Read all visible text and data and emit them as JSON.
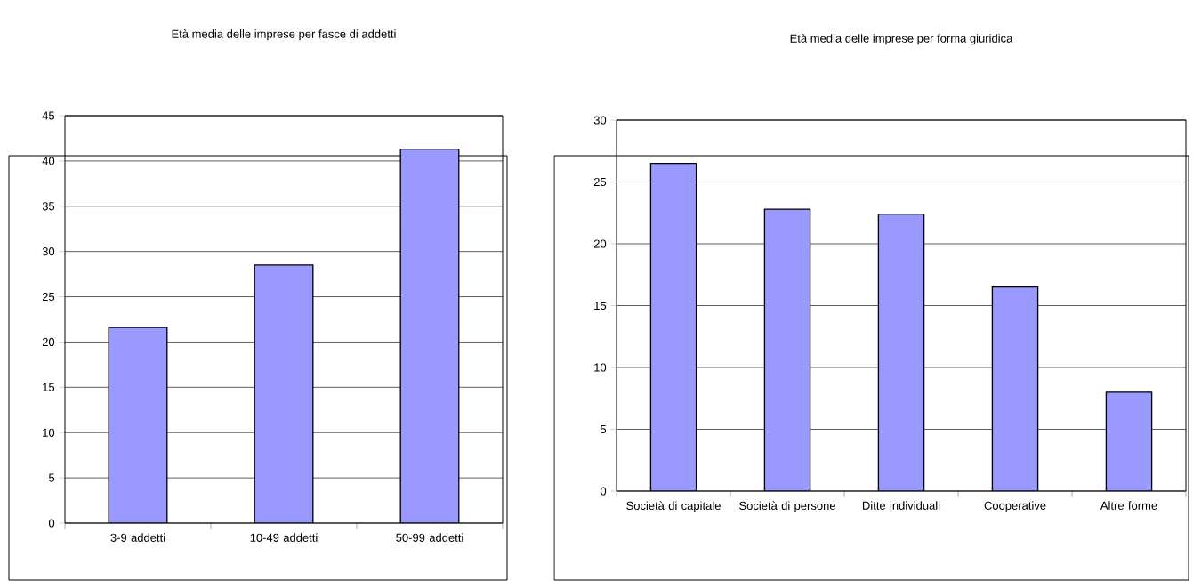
{
  "chart_data": [
    {
      "type": "bar",
      "title": "Età media delle imprese per fasce di addetti",
      "categories": [
        "3-9 addetti",
        "10-49 addetti",
        "50-99 addetti"
      ],
      "values": [
        21.6,
        28.5,
        41.3
      ],
      "color": "#9999ff",
      "ylim": [
        0,
        45
      ],
      "yticks": [
        0,
        5,
        10,
        15,
        20,
        25,
        30,
        35,
        40,
        45
      ],
      "grid": "y"
    },
    {
      "type": "bar",
      "title": "Età media delle imprese per forma giuridica",
      "categories": [
        "Società di capitale",
        "Società di persone",
        "Ditte individuali",
        "Cooperative",
        "Altre forme"
      ],
      "values": [
        26.5,
        22.8,
        22.4,
        16.5,
        8.0
      ],
      "color": "#9999ff",
      "ylim": [
        0,
        30
      ],
      "yticks": [
        0,
        5,
        10,
        15,
        20,
        25,
        30
      ],
      "grid": "y"
    }
  ]
}
